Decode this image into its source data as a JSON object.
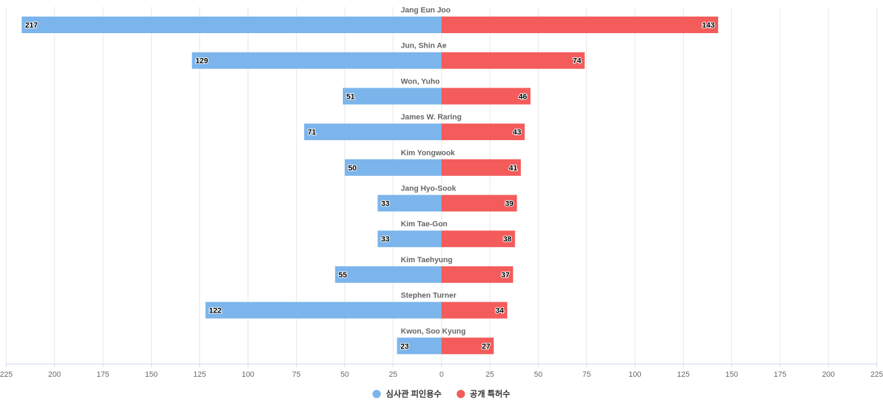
{
  "chart_data": {
    "type": "bar",
    "orientation": "horizontal-diverging",
    "categories": [
      "Jang Eun Joo",
      "Jun, Shin Ae",
      "Won, Yuho",
      "James W. Raring",
      "Kim Yongwook",
      "Jang Hyo-Sook",
      "Kim Tae-Gon",
      "Kim Taehyung",
      "Stephen Turner",
      "Kwon, Soo Kyung"
    ],
    "series": [
      {
        "name": "심사관 피인용수",
        "side": "left",
        "color": "#7cb5ec",
        "values": [
          217,
          129,
          51,
          71,
          50,
          33,
          33,
          55,
          122,
          23
        ]
      },
      {
        "name": "공개 특허수",
        "side": "right",
        "color": "#f45b5b",
        "values": [
          143,
          74,
          46,
          43,
          41,
          39,
          38,
          37,
          34,
          27
        ]
      }
    ],
    "x_ticks": [
      "225",
      "200",
      "175",
      "150",
      "125",
      "100",
      "75",
      "50",
      "25",
      "0",
      "25",
      "50",
      "75",
      "100",
      "125",
      "150",
      "175",
      "200",
      "225"
    ],
    "xlim": [
      -225,
      225
    ],
    "grid": true,
    "legend_position": "bottom-center",
    "data_labels": true
  }
}
